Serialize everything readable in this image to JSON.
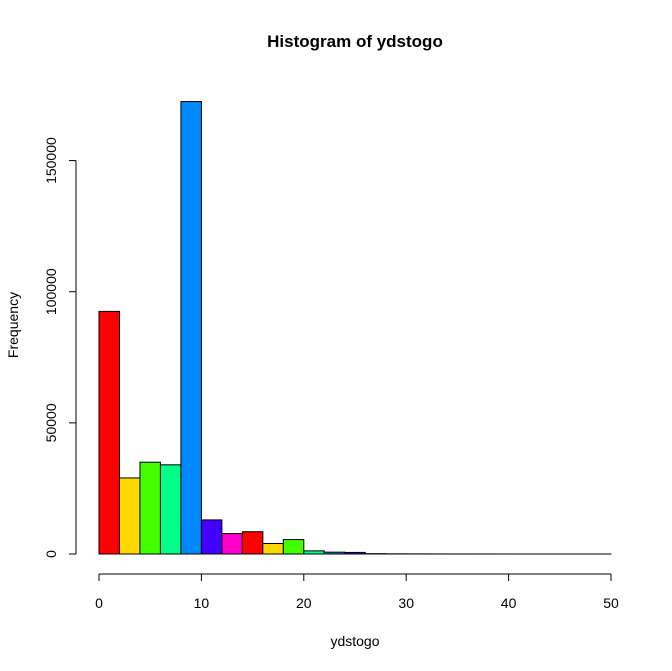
{
  "chart_data": {
    "type": "bar",
    "title": "Histogram of ydstogo",
    "xlabel": "ydstogo",
    "ylabel": "Frequency",
    "bin_width": 2,
    "xlim": [
      0,
      50
    ],
    "ylim": [
      0,
      175000
    ],
    "x_ticks": [
      0,
      10,
      20,
      30,
      40,
      50
    ],
    "y_ticks": [
      0,
      50000,
      100000,
      150000
    ],
    "bins": [
      {
        "start": 0,
        "end": 2,
        "value": 92500,
        "color": "#ff0000"
      },
      {
        "start": 2,
        "end": 4,
        "value": 29000,
        "color": "#ffd700"
      },
      {
        "start": 4,
        "end": 6,
        "value": 35000,
        "color": "#44ff00"
      },
      {
        "start": 6,
        "end": 8,
        "value": 34000,
        "color": "#00ff88"
      },
      {
        "start": 8,
        "end": 10,
        "value": 172500,
        "color": "#0088ff"
      },
      {
        "start": 10,
        "end": 12,
        "value": 13000,
        "color": "#4400ff"
      },
      {
        "start": 12,
        "end": 14,
        "value": 7800,
        "color": "#ff00cc"
      },
      {
        "start": 14,
        "end": 16,
        "value": 8500,
        "color": "#ff0000"
      },
      {
        "start": 16,
        "end": 18,
        "value": 4000,
        "color": "#ffd700"
      },
      {
        "start": 18,
        "end": 20,
        "value": 5500,
        "color": "#44ff00"
      },
      {
        "start": 20,
        "end": 22,
        "value": 1200,
        "color": "#00ff88"
      },
      {
        "start": 22,
        "end": 24,
        "value": 700,
        "color": "#0088ff"
      },
      {
        "start": 24,
        "end": 26,
        "value": 600,
        "color": "#4400ff"
      },
      {
        "start": 26,
        "end": 28,
        "value": 120,
        "color": "#ff00cc"
      },
      {
        "start": 28,
        "end": 30,
        "value": 60,
        "color": "#ff0000"
      },
      {
        "start": 30,
        "end": 32,
        "value": 40,
        "color": "#ffd700"
      },
      {
        "start": 32,
        "end": 34,
        "value": 25,
        "color": "#44ff00"
      },
      {
        "start": 34,
        "end": 36,
        "value": 15,
        "color": "#00ff88"
      },
      {
        "start": 36,
        "end": 38,
        "value": 10,
        "color": "#0088ff"
      },
      {
        "start": 38,
        "end": 40,
        "value": 8,
        "color": "#4400ff"
      },
      {
        "start": 40,
        "end": 42,
        "value": 5,
        "color": "#ff00cc"
      },
      {
        "start": 42,
        "end": 44,
        "value": 4,
        "color": "#ff0000"
      },
      {
        "start": 44,
        "end": 46,
        "value": 3,
        "color": "#ffd700"
      },
      {
        "start": 46,
        "end": 48,
        "value": 2,
        "color": "#44ff00"
      },
      {
        "start": 48,
        "end": 50,
        "value": 2,
        "color": "#00ff88"
      }
    ]
  }
}
